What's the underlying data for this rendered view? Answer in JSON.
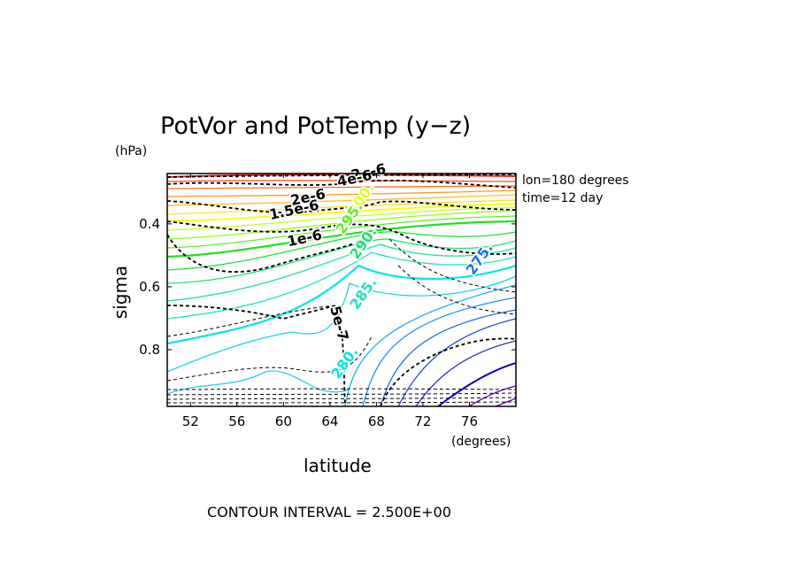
{
  "chart_data": {
    "type": "contour",
    "title": "PotVor and PotTemp (y−z)",
    "xlabel": "latitude",
    "x_units": "(degrees)",
    "ylabel": "sigma",
    "y_units": "(hPa)",
    "xlim": [
      50,
      80
    ],
    "ylim": [
      0.24,
      0.98
    ],
    "y_inverted": true,
    "x_ticks": [
      52,
      56,
      60,
      64,
      68,
      72,
      76
    ],
    "y_ticks": [
      0.4,
      0.6,
      0.8
    ],
    "y_tick_labels": [
      "0.4",
      "0.6",
      "0.8"
    ],
    "annotations": [
      "lon=180 degrees",
      "time=12 day"
    ],
    "footer": "CONTOUR INTERVAL = 2.500E+00",
    "pv_labels": [
      {
        "text": "2e-6",
        "lat": 67.4,
        "sigma": 0.25
      },
      {
        "text": "4e-6",
        "lat": 66.2,
        "sigma": 0.27
      },
      {
        "text": "2e-6",
        "lat": 62.2,
        "sigma": 0.33
      },
      {
        "text": "1.5e-6",
        "lat": 61.0,
        "sigma": 0.37
      },
      {
        "text": "1e-6",
        "lat": 61.9,
        "sigma": 0.46
      },
      {
        "text": "5e-7",
        "lat": 64.4,
        "sigma": 0.72
      }
    ],
    "theta_labels": [
      {
        "text": "300.",
        "lat": 67.0,
        "sigma": 0.33
      },
      {
        "text": "295.",
        "lat": 66.0,
        "sigma": 0.39
      },
      {
        "text": "290.",
        "lat": 67.2,
        "sigma": 0.47
      },
      {
        "text": "285.",
        "lat": 67.2,
        "sigma": 0.63
      },
      {
        "text": "280.",
        "lat": 65.6,
        "sigma": 0.85
      },
      {
        "text": "275.",
        "lat": 77.2,
        "sigma": 0.52
      }
    ],
    "colors": {
      "warm": "#ff2a2a",
      "orange": "#ffaa00",
      "yellow": "#ffff00",
      "green": "#00dd00",
      "cyan": "#00e5e5",
      "blue": "#0000cc",
      "purple": "#8000a0",
      "pv_contour": "#000000"
    }
  }
}
